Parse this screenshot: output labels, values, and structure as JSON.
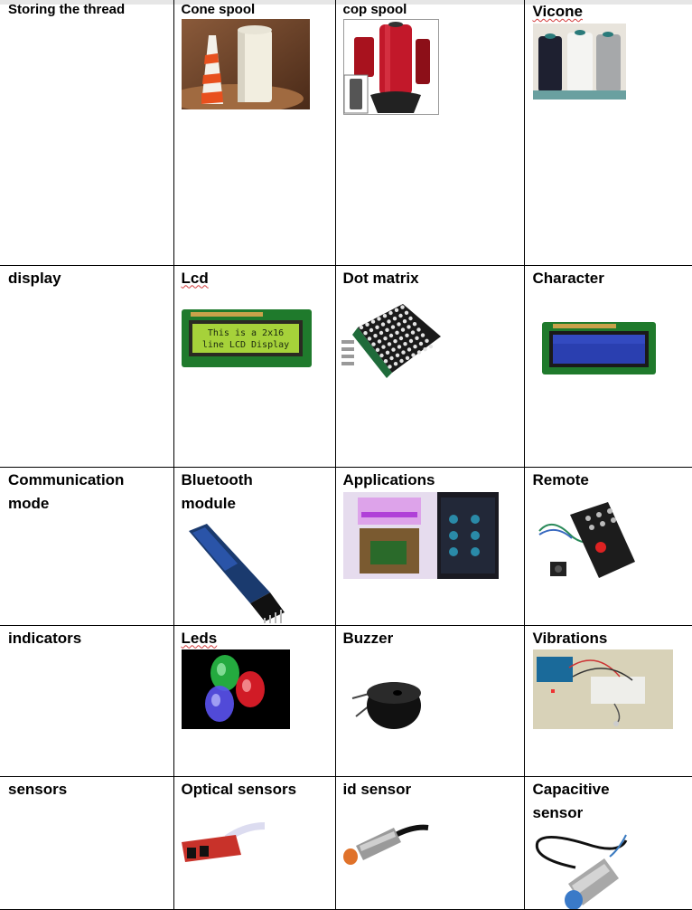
{
  "rows": [
    {
      "category": "Storing the thread",
      "items": [
        {
          "label": "Cone spool",
          "image": "cone-spool-photo"
        },
        {
          "label": "cop spool",
          "image": "cop-spool-photo"
        },
        {
          "label": "Vicone",
          "image": "vicone-spool-photo"
        }
      ]
    },
    {
      "category": "display",
      "items": [
        {
          "label": "Lcd",
          "image": "lcd-display-photo",
          "screen_text": [
            "This is a 2x16",
            "line LCD Display"
          ]
        },
        {
          "label": "Dot matrix",
          "image": "dot-matrix-photo"
        },
        {
          "label": "Character",
          "image": "character-lcd-photo"
        }
      ]
    },
    {
      "category": "Communication mode",
      "items": [
        {
          "label": "Bluetooth module",
          "image": "bluetooth-module-photo"
        },
        {
          "label": "Applications",
          "image": "app-led-control-photo"
        },
        {
          "label": "Remote",
          "image": "ir-remote-photo"
        }
      ]
    },
    {
      "category": "indicators",
      "items": [
        {
          "label": "Leds",
          "image": "leds-photo"
        },
        {
          "label": "Buzzer",
          "image": "buzzer-photo"
        },
        {
          "label": "Vibrations",
          "image": "vibration-circuit-photo"
        }
      ]
    },
    {
      "category": "sensors",
      "items": [
        {
          "label": "Optical sensors",
          "image": "optical-sensor-photo"
        },
        {
          "label": "id sensor",
          "image": "inductive-sensor-photo"
        },
        {
          "label": "Capacitive sensor",
          "image": "capacitive-sensor-photo"
        }
      ]
    }
  ]
}
